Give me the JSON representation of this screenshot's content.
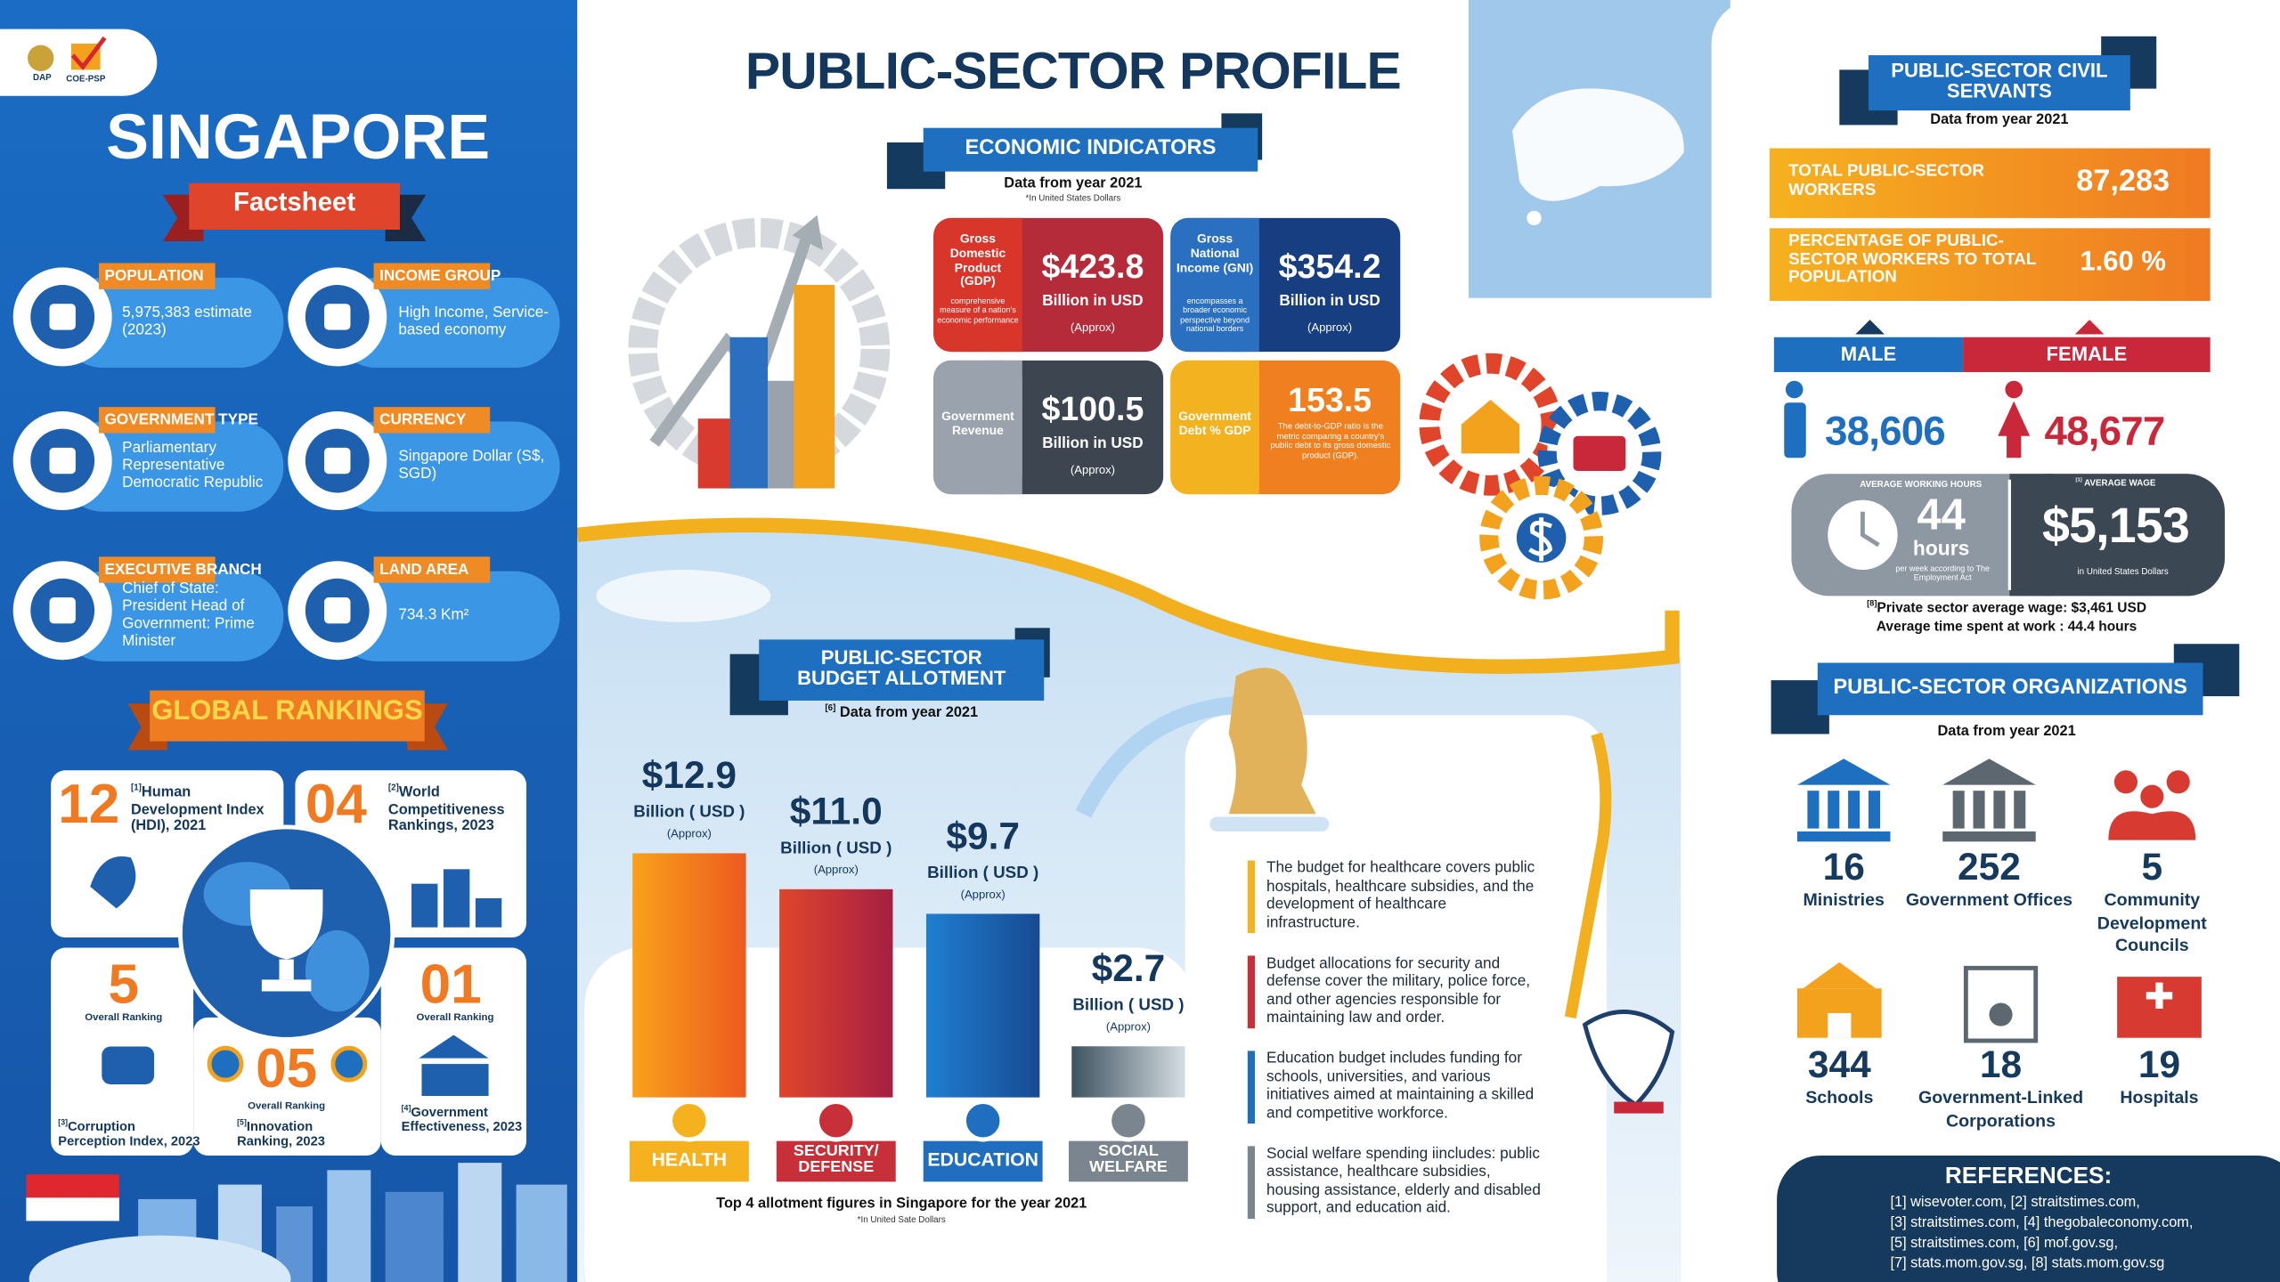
{
  "left_panel": {
    "logos": [
      "DAP",
      "COE-PSP"
    ],
    "title": "SINGAPORE",
    "subtitle": "Factsheet",
    "facts": [
      {
        "label": "POPULATION",
        "value": "5,975,383 estimate (2023)"
      },
      {
        "label": "INCOME GROUP",
        "value": "High Income, Service-based economy"
      },
      {
        "label": "GOVERNMENT TYPE",
        "value": "Parliamentary Representative Democratic Republic"
      },
      {
        "label": "CURRENCY",
        "value": "Singapore Dollar (S$, SGD)"
      },
      {
        "label": "EXECUTIVE BRANCH",
        "value": "Chief of State: President Head of Government: Prime Minister"
      },
      {
        "label": "LAND AREA",
        "value": "734.3 Km²"
      }
    ],
    "rankings_title": "GLOBAL RANKINGS",
    "rankings": [
      {
        "rank": "12",
        "ref": "[1]",
        "label": "Human Development Index (HDI), 2021"
      },
      {
        "rank": "04",
        "ref": "[2]",
        "label": "World Competitiveness Rankings, 2023"
      },
      {
        "rank": "5",
        "caption": "Overall Ranking",
        "ref": "[3]",
        "label": "Corruption Perception Index, 2023"
      },
      {
        "rank": "05",
        "caption": "Overall Ranking",
        "ref": "[5]",
        "label": "Innovation Ranking, 2023"
      },
      {
        "rank": "01",
        "caption": "Overall Ranking",
        "ref": "[4]",
        "label": "Government Effectiveness, 2023"
      }
    ]
  },
  "header": {
    "title": "PUBLIC-SECTOR PROFILE"
  },
  "economic": {
    "title": "ECONOMIC INDICATORS",
    "note": "Data from year 2021",
    "unit_note": "*In United States Dollars",
    "cards": [
      {
        "name": "Gross Domestic Product (GDP)",
        "desc": "comprehensive measure of a nation's economic performance",
        "value": "$423.8",
        "unit": "Billion in USD",
        "approx": "(Approx)"
      },
      {
        "name": "Gross National Income (GNI)",
        "desc": "encompasses a broader economic perspective beyond national borders",
        "value": "$354.2",
        "unit": "Billion in USD",
        "approx": "(Approx)"
      },
      {
        "name": "Government Revenue",
        "value": "$100.5",
        "unit": "Billion in USD",
        "approx": "(Approx)"
      },
      {
        "name": "Government Debt % GDP",
        "value": "153.5",
        "desc": "The debt-to-GDP ratio is the metric comparing a country's public debt to its gross domestic product (GDP)."
      }
    ]
  },
  "budget": {
    "title": "PUBLIC-SECTOR BUDGET ALLOTMENT",
    "ref": "[6]",
    "note": " Data from year 2021",
    "categories": [
      "HEALTH",
      "SECURITY/ DEFENSE",
      "EDUCATION",
      "SOCIAL WELFARE"
    ],
    "values": [
      12.9,
      11.0,
      9.7,
      2.7
    ],
    "value_labels": [
      "$12.9",
      "$11.0",
      "$9.7",
      "$2.7"
    ],
    "unit": "Billion ( USD )",
    "approx": "(Approx)",
    "caption": "Top 4 allotment figures in Singapore for the year 2021",
    "unit_note": "*In United Sate Dollars",
    "descriptions": [
      "The budget for healthcare covers public hospitals, healthcare subsidies, and the development of healthcare infrastructure.",
      "Budget allocations for security and defense cover the military, police force, and other agencies responsible for maintaining law and order.",
      "Education budget includes funding for schools, universities, and various initiatives aimed at maintaining a skilled and competitive workforce.",
      "Social welfare spending iincludes: public assistance, healthcare subsidies, housing assistance, elderly and disabled support, and education aid."
    ]
  },
  "civil_servants": {
    "title": "PUBLIC-SECTOR CIVIL SERVANTS",
    "note": "Data from year 2021",
    "stats": [
      {
        "label": "TOTAL PUBLIC-SECTOR WORKERS",
        "value": "87,283"
      },
      {
        "label": "PERCENTAGE OF PUBLIC-SECTOR WORKERS TO TOTAL POPULATION",
        "value": "1.60 %"
      }
    ],
    "male": {
      "label": "MALE",
      "value": "38,606"
    },
    "female": {
      "label": "FEMALE",
      "value": "48,677"
    },
    "hours": {
      "title": "AVERAGE WORKING HOURS",
      "value": "44",
      "unit": "hours",
      "note": "per week according to The Employment Act"
    },
    "wage": {
      "ref": "[1]",
      "title": " AVERAGE WAGE",
      "value": "$5,153",
      "note": "in United States Dollars"
    },
    "private": {
      "ref": "[8]",
      "text": "Private sector average wage:  $3,461 USD"
    },
    "time": "Average time spent at work : 44.4 hours"
  },
  "organizations": {
    "title": "PUBLIC-SECTOR ORGANIZATIONS",
    "note": "Data from year 2021",
    "items": [
      {
        "count": "16",
        "label": "Ministries"
      },
      {
        "count": "252",
        "label": "Government Offices"
      },
      {
        "count": "5",
        "label": "Community Development Councils"
      },
      {
        "count": "344",
        "label": "Schools"
      },
      {
        "count": "18",
        "label": "Government-Linked Corporations"
      },
      {
        "count": "19",
        "label": "Hospitals"
      }
    ]
  },
  "references": {
    "title": "REFERENCES:",
    "lines": [
      "[1] wisevoter.com, [2] straitstimes.com,",
      "[3] straitstimes.com, [4] thegobaleconomy.com,",
      "[5] straitstimes.com, [6] mof.gov.sg,",
      "[7] stats.mom.gov.sg, [8] stats.mom.gov.sg"
    ]
  }
}
